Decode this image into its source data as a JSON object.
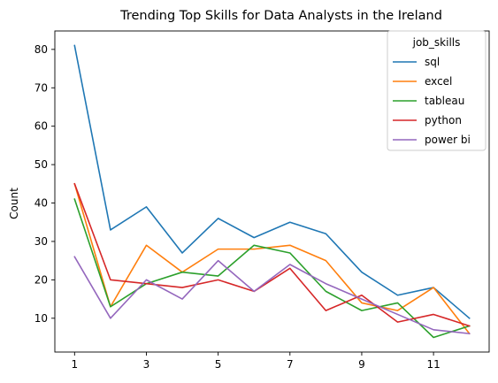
{
  "chart_data": {
    "type": "line",
    "title": "Trending Top Skills for Data Analysts in the Ireland",
    "xlabel": "",
    "ylabel": "Count",
    "x": [
      1,
      2,
      3,
      4,
      5,
      6,
      7,
      8,
      9,
      10,
      11,
      12
    ],
    "xticks": [
      1,
      3,
      5,
      7,
      9,
      11
    ],
    "yticks": [
      10,
      20,
      30,
      40,
      50,
      60,
      70,
      80
    ],
    "xlim": [
      0.45,
      12.55
    ],
    "ylim": [
      1.2,
      84.8
    ],
    "grid": false,
    "legend": {
      "title": "job_skills",
      "placement": "top-right"
    },
    "series": [
      {
        "name": "sql",
        "color": "#1f77b4",
        "values": [
          81,
          33,
          39,
          27,
          36,
          31,
          35,
          32,
          22,
          16,
          18,
          10
        ]
      },
      {
        "name": "excel",
        "color": "#ff7f0e",
        "values": [
          45,
          13,
          29,
          22,
          28,
          28,
          29,
          25,
          14,
          12,
          18,
          6
        ]
      },
      {
        "name": "tableau",
        "color": "#2ca02c",
        "values": [
          41,
          13,
          19,
          22,
          21,
          29,
          27,
          17,
          12,
          14,
          5,
          8
        ]
      },
      {
        "name": "python",
        "color": "#d62728",
        "values": [
          45,
          20,
          19,
          18,
          20,
          17,
          23,
          12,
          16,
          9,
          11,
          8
        ]
      },
      {
        "name": "power bi",
        "color": "#9467bd",
        "values": [
          26,
          10,
          20,
          15,
          25,
          17,
          24,
          19,
          15,
          11,
          7,
          6
        ]
      }
    ]
  }
}
